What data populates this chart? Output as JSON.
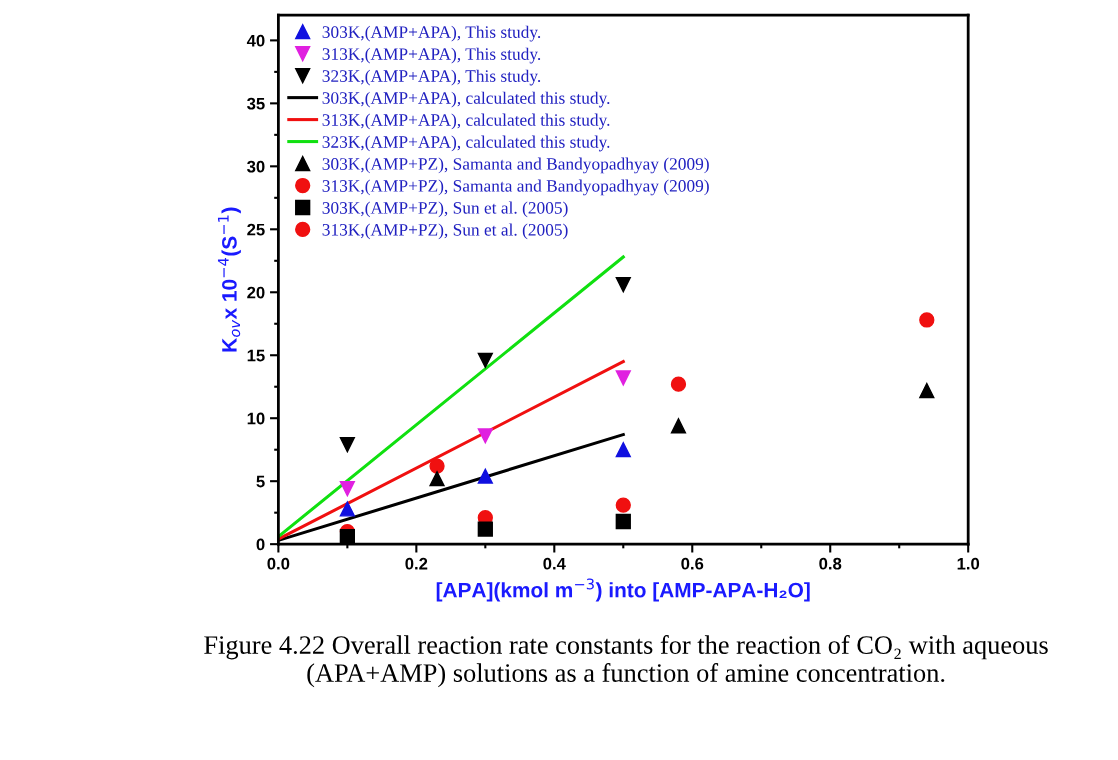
{
  "chart_data": {
    "type": "scatter",
    "xlabel": "[APA](kmol m$^{−3}$) into [AMP-APA-H₂O]",
    "ylabel": "K$_{ov}$x 10$^{−4}$(S$^{−1}$)",
    "xlim": [
      0,
      1.0
    ],
    "xticks": [
      {
        "value": 0,
        "label": "0.0"
      },
      0.2,
      0.4,
      0.6,
      0.8,
      {
        "value": 1.0,
        "label": "1.0"
      }
    ],
    "ylim": [
      0,
      42
    ],
    "yticks": [
      0,
      5,
      10,
      15,
      20,
      25,
      30,
      35,
      40
    ],
    "grid": false,
    "legend": "top left",
    "series": [
      {
        "name": "303K,(AMP+APA), This study.",
        "color": "#1010e0",
        "marker": "triangle",
        "x": [
          0.1,
          0.3,
          0.5
        ],
        "values": [
          2.8,
          5.4,
          7.5
        ]
      },
      {
        "name": "313K,(AMP+APA), This study.",
        "color": "#e020e0",
        "marker": "triangle_down",
        "x": [
          0.1,
          0.3,
          0.5
        ],
        "values": [
          4.4,
          8.6,
          13.2
        ]
      },
      {
        "name": "323K,(AMP+APA), This study.",
        "color": "#000000",
        "marker": "triangle_down",
        "x": [
          0.1,
          0.3,
          0.5
        ],
        "values": [
          7.9,
          14.6,
          20.6
        ]
      },
      {
        "name": "303K,(AMP+APA), calculated this study.",
        "type": "line",
        "color": "#000000",
        "marker": "none",
        "line_style": "solid",
        "x": [
          0,
          0.5
        ],
        "values": [
          0.3,
          8.7
        ]
      },
      {
        "name": "313K,(AMP+APA), calculated this study.",
        "type": "line",
        "color": "#f01010",
        "marker": "none",
        "line_style": "solid",
        "x": [
          0,
          0.5
        ],
        "values": [
          0.4,
          14.5
        ]
      },
      {
        "name": "323K,(AMP+APA), calculated this study.",
        "type": "line",
        "color": "#10e010",
        "marker": "none",
        "line_style": "solid",
        "x": [
          0,
          0.5
        ],
        "values": [
          0.6,
          22.8
        ]
      },
      {
        "name": "303K,(AMP+PZ), Samanta and Bandyopadhyay (2009)",
        "color": "#000000",
        "marker": "triangle",
        "x": [
          0.23,
          0.58,
          0.94
        ],
        "values": [
          5.2,
          9.4,
          12.2
        ]
      },
      {
        "name": "313K,(AMP+PZ), Samanta and Bandyopadhyay (2009)",
        "color": "#f01010",
        "marker": "circle",
        "x": [
          0.23,
          0.58,
          0.94
        ],
        "values": [
          6.2,
          12.7,
          17.8
        ]
      },
      {
        "name": "303K,(AMP+PZ), Sun et al. (2005)",
        "color": "#000000",
        "marker": "square",
        "x": [
          0.1,
          0.3,
          0.5
        ],
        "values": [
          0.6,
          1.2,
          1.8
        ]
      },
      {
        "name": "313K,(AMP+PZ), Sun et al. (2005)",
        "color": "#f01010",
        "marker": "circle",
        "x": [
          0.1,
          0.3,
          0.5
        ],
        "values": [
          1.0,
          2.1,
          3.1
        ]
      }
    ],
    "annotations": [
      "Figure 4.22 Overall reaction rate constants for the reaction of CO₂ with aqueous (APA+AMP) solutions as a function of amine concentration."
    ]
  }
}
